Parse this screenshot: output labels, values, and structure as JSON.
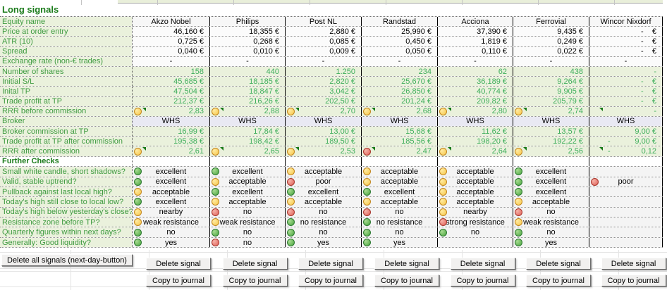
{
  "title": "Long signals",
  "checks_header": "Further Checks",
  "columns": [
    "Akzo Nobel",
    "Philips",
    "Post NL",
    "Randstad",
    "Acciona",
    "Ferrovial",
    "Wincor Nixdorf"
  ],
  "colors": {
    "title_green": "#1c7c1c",
    "label_green": "#3f9b41",
    "value_green": "#3fae5c",
    "row_green_bg": "#eaf1dc",
    "broker_bg": "#e9e9f3",
    "icon_green": "#49a43e",
    "icon_yellow": "#f6c648",
    "icon_red": "#e06158"
  },
  "main_rows": [
    {
      "label": "Equity name",
      "type": "equity",
      "cells": [
        "Akzo Nobel",
        "Philips",
        "Post NL",
        "Randstad",
        "Acciona",
        "Ferrovial",
        "Wincor Nixdorf"
      ]
    },
    {
      "label": "Price at order entry",
      "type": "input",
      "cells": [
        "46,160 €",
        "18,355 €",
        "2,880 €",
        "25,990 €",
        "37,390 €",
        "9,435 €",
        "-    €"
      ]
    },
    {
      "label": "ATR (10)",
      "type": "input",
      "cells": [
        "0,725 €",
        "0,268 €",
        "0,085 €",
        "0,450 €",
        "1,819 €",
        "0,249 €",
        "-    €"
      ]
    },
    {
      "label": "Spread",
      "type": "input",
      "cells": [
        "0,040 €",
        "0,010 €",
        "0,009 €",
        "0,050 €",
        "0,110 €",
        "0,022 €",
        "-    €"
      ]
    },
    {
      "label": "Exchange rate (non-€ trades)",
      "type": "inputc",
      "cells": [
        "-",
        "-",
        "-",
        "-",
        "-",
        "-",
        "-"
      ]
    },
    {
      "label": "Number of shares",
      "type": "calc",
      "cells": [
        "158",
        "440",
        "1.250",
        "234",
        "62",
        "438",
        "-"
      ]
    },
    {
      "label": "Initial S/L",
      "type": "calc",
      "cells": [
        "45,685 €",
        "18,185 €",
        "2,820 €",
        "25,670 €",
        "36,189 €",
        "9,264 €",
        "-    €"
      ]
    },
    {
      "label": "Inital TP",
      "type": "calc",
      "cells": [
        "47,504 €",
        "18,847 €",
        "3,042 €",
        "26,850 €",
        "40,774 €",
        "9,905 €",
        "-    €"
      ]
    },
    {
      "label": "Trade profit at TP",
      "type": "calc",
      "cells": [
        "212,37 €",
        "216,26 €",
        "202,50 €",
        "201,24 €",
        "209,82 €",
        "205,79 €",
        "-    €"
      ]
    },
    {
      "label": "RRR before commission",
      "type": "calc",
      "cells": [
        {
          "t": "2,83",
          "i": "yellow",
          "tri": true
        },
        {
          "t": "2,88",
          "i": "yellow",
          "tri": true
        },
        {
          "t": "2,70",
          "i": "yellow",
          "tri": true
        },
        {
          "t": "2,68",
          "i": "yellow",
          "tri": true
        },
        {
          "t": "2,80",
          "i": "yellow",
          "tri": true
        },
        {
          "t": "2,74",
          "i": "yellow",
          "tri": true
        },
        {
          "t": "-",
          "tri": true
        }
      ]
    },
    {
      "label": "Broker",
      "type": "broker",
      "cells": [
        "WHS",
        "WHS",
        "WHS",
        "WHS",
        "WHS",
        "WHS",
        "WHS"
      ]
    },
    {
      "label": "Broker commission at TP",
      "type": "calc",
      "cells": [
        "16,99 €",
        "17,84 €",
        "13,00 €",
        "15,68 €",
        "11,62 €",
        "13,57 €",
        "9,00 €"
      ]
    },
    {
      "label": "Trade profit at TP after commission",
      "type": "calc",
      "cells": [
        "195,38 €",
        "198,42 €",
        "189,50 €",
        "185,56 €",
        "198,20 €",
        "192,22 €",
        {
          "t": "9,00 €",
          "neg": "-"
        }
      ]
    },
    {
      "label": "RRR after commission",
      "type": "calc",
      "cells": [
        {
          "t": "2,61",
          "i": "yellow",
          "tri": true
        },
        {
          "t": "2,65",
          "i": "yellow",
          "tri": true
        },
        {
          "t": "2,53",
          "i": "yellow",
          "tri": true
        },
        {
          "t": "2,47",
          "i": "red",
          "tri": true
        },
        {
          "t": "2,64",
          "i": "yellow",
          "tri": true
        },
        {
          "t": "2,56",
          "i": "yellow",
          "tri": true
        },
        {
          "t": "0,12",
          "neg": "-",
          "tri": true
        }
      ]
    }
  ],
  "check_rows": [
    {
      "label": "Small white candle, short shadows?",
      "cells": [
        {
          "i": "green",
          "t": "excellent"
        },
        {
          "i": "green",
          "t": "excellent"
        },
        {
          "i": "yellow",
          "t": "acceptable"
        },
        {
          "i": "yellow",
          "t": "acceptable"
        },
        {
          "i": "yellow",
          "t": "acceptable"
        },
        {
          "i": "green",
          "t": "excellent"
        },
        null
      ]
    },
    {
      "label": "Valid, stable uptrend?",
      "cells": [
        {
          "i": "green",
          "t": "excellent"
        },
        {
          "i": "yellow",
          "t": "acceptable"
        },
        {
          "i": "red",
          "t": "poor"
        },
        {
          "i": "yellow",
          "t": "acceptable"
        },
        {
          "i": "yellow",
          "t": "acceptable"
        },
        {
          "i": "green",
          "t": "excellent"
        },
        {
          "i": "red",
          "t": "poor"
        }
      ]
    },
    {
      "label": "Pullback against last local high?",
      "cells": [
        {
          "i": "yellow",
          "t": "acceptable"
        },
        {
          "i": "green",
          "t": "excellent"
        },
        {
          "i": "green",
          "t": "excellent"
        },
        {
          "i": "green",
          "t": "excellent"
        },
        {
          "i": "yellow",
          "t": "acceptable"
        },
        {
          "i": "green",
          "t": "excellent"
        },
        null
      ]
    },
    {
      "label": "Today's high still close to local low?",
      "cells": [
        {
          "i": "green",
          "t": "excellent"
        },
        {
          "i": "yellow",
          "t": "acceptable"
        },
        {
          "i": "yellow",
          "t": "acceptable"
        },
        {
          "i": "yellow",
          "t": "acceptable"
        },
        {
          "i": "yellow",
          "t": "acceptable"
        },
        {
          "i": "yellow",
          "t": "acceptable"
        },
        null
      ]
    },
    {
      "label": "Today's high below yesterday's close?",
      "cells": [
        {
          "i": "yellow",
          "t": "nearby"
        },
        {
          "i": "red",
          "t": "no"
        },
        {
          "i": "red",
          "t": "no"
        },
        {
          "i": "red",
          "t": "no"
        },
        {
          "i": "yellow",
          "t": "nearby"
        },
        {
          "i": "red",
          "t": "no"
        },
        null
      ]
    },
    {
      "label": "Resistance zone before TP?",
      "cells": [
        {
          "i": "yellow",
          "t": "weak resistance"
        },
        {
          "i": "yellow",
          "t": "weak resistance"
        },
        {
          "i": "green",
          "t": "no resistance"
        },
        {
          "i": "green",
          "t": "no resistance"
        },
        {
          "i": "red",
          "t": "strong resistance"
        },
        {
          "i": "yellow",
          "t": "weak resistance"
        },
        null
      ]
    },
    {
      "label": "Quarterly figures within next days?",
      "cells": [
        {
          "i": "green",
          "t": "no"
        },
        {
          "i": "green",
          "t": "no"
        },
        {
          "i": "green",
          "t": "no"
        },
        {
          "i": "green",
          "t": "no"
        },
        {
          "i": "green",
          "t": "no"
        },
        {
          "i": "green",
          "t": "no"
        },
        null
      ]
    },
    {
      "label": "Generally: Good liquidity?",
      "cells": [
        {
          "i": "green",
          "t": "yes"
        },
        {
          "i": "red",
          "t": "no"
        },
        {
          "i": "green",
          "t": "yes"
        },
        {
          "i": "green",
          "t": "yes"
        },
        null,
        {
          "i": "green",
          "t": "yes"
        },
        null
      ]
    }
  ],
  "buttons": {
    "delete_all": "Delete all signals (next-day-button)",
    "delete_signal": "Delete signal",
    "copy_to_journal": "Copy to journal"
  }
}
